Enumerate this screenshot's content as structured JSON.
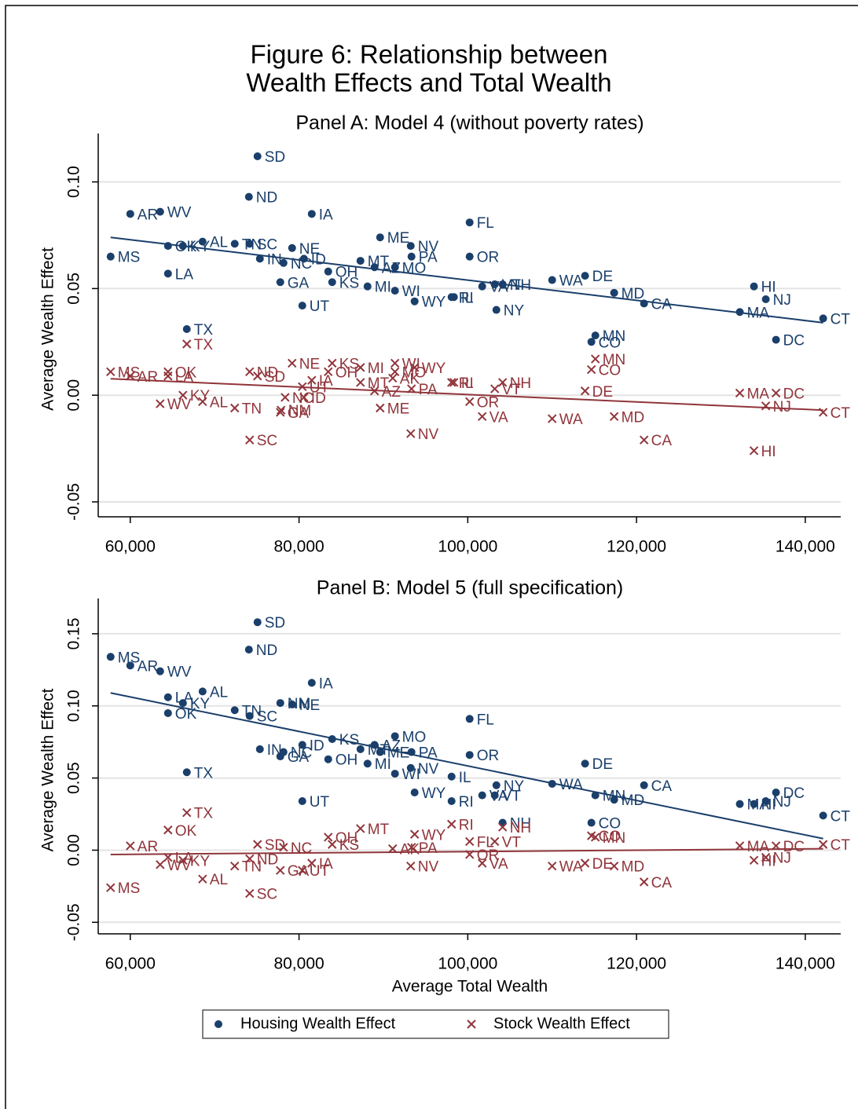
{
  "title": [
    "Figure 6: Relationship between",
    "Wealth Effects and Total Wealth"
  ],
  "chart_data": [
    {
      "type": "scatter",
      "title": "Panel A: Model 4 (without poverty rates)",
      "ylabel": "Average Wealth Effect",
      "xlim": [
        56200,
        144200
      ],
      "ylim": [
        -0.057,
        0.119
      ],
      "xticks": [
        {
          "value": 60000,
          "label": "60,000"
        },
        {
          "value": 80000,
          "label": "80,000"
        },
        {
          "value": 100000,
          "label": "100,000"
        },
        {
          "value": 120000,
          "label": "120,000"
        },
        {
          "value": 140000,
          "label": "140,000"
        }
      ],
      "yticks": [
        -0.05,
        {
          "value": 0,
          "label": "0.00"
        },
        0.05,
        {
          "value": 0.1,
          "label": "0.10"
        }
      ],
      "grid": true,
      "series": [
        {
          "name": "Housing Wealth Effect",
          "color": "#1a3f6b",
          "marker": "dot",
          "labels": [
            "SD",
            "ND",
            "IA",
            "MS",
            "AR",
            "WV",
            "LA",
            "OK",
            "KY",
            "AL",
            "TN",
            "SC",
            "IN",
            "NE",
            "NC",
            "ID",
            "GA",
            "OH",
            "KS",
            "MT",
            "AZ",
            "MO",
            "WI",
            "MI",
            "PA",
            "ME",
            "NV",
            "UT",
            "WY",
            "RI",
            "IL",
            "FL",
            "OR",
            "NY",
            "VA",
            "VT",
            "NH",
            "WA",
            "DE",
            "MD",
            "CA",
            "MN",
            "CO",
            "TX",
            "HI",
            "NJ",
            "MA",
            "DC",
            "CT"
          ],
          "x": [
            75080,
            74060,
            81510,
            57670,
            60000,
            63540,
            64470,
            64470,
            66240,
            68570,
            72380,
            74150,
            75360,
            79180,
            78160,
            80580,
            77780,
            83460,
            83930,
            87280,
            88950,
            91370,
            91370,
            88120,
            93330,
            89610,
            93240,
            80390,
            93700,
            98080,
            98360,
            100220,
            100220,
            103390,
            101710,
            103200,
            104130,
            110000,
            113900,
            117350,
            120890,
            115120,
            114650,
            66700,
            133920,
            135320,
            132240,
            136530,
            142120
          ],
          "values": [
            0.112,
            0.093,
            0.085,
            0.065,
            0.085,
            0.086,
            0.057,
            0.07,
            0.07,
            0.072,
            0.071,
            0.071,
            0.064,
            0.069,
            0.062,
            0.064,
            0.053,
            0.058,
            0.053,
            0.063,
            0.06,
            0.06,
            0.049,
            0.051,
            0.065,
            0.074,
            0.07,
            0.042,
            0.044,
            0.046,
            0.046,
            0.081,
            0.065,
            0.04,
            0.051,
            0.052,
            0.052,
            0.054,
            0.056,
            0.048,
            0.043,
            0.028,
            0.025,
            0.031,
            0.051,
            0.045,
            0.039,
            0.026,
            0.036
          ],
          "fit": {
            "x": [
              57670,
              142120
            ],
            "values": [
              0.074,
              0.034
            ]
          }
        },
        {
          "name": "Stock Wealth Effect",
          "color": "#90353b",
          "marker": "cross",
          "labels": [
            "MS",
            "AR",
            "LA",
            "OK",
            "WV",
            "KY",
            "AL",
            "TX",
            "TN",
            "SC",
            "ND",
            "SD",
            "NE",
            "IA",
            "UT",
            "NC",
            "ID",
            "GA",
            "NM",
            "KS",
            "OH",
            "MI",
            "MT",
            "AK",
            "AZ",
            "ME",
            "WI",
            "MO",
            "WY",
            "PA",
            "NV",
            "RI",
            "IL",
            "OR",
            "VA",
            "NH",
            "VT",
            "WA",
            "DE",
            "MN",
            "CO",
            "MD",
            "CA",
            "MA",
            "HI",
            "DC",
            "NJ",
            "CT"
          ],
          "x": [
            57670,
            60000,
            64470,
            64470,
            63540,
            66240,
            68570,
            66700,
            72380,
            74150,
            74150,
            75080,
            79180,
            81510,
            80390,
            78350,
            80580,
            77780,
            77870,
            83930,
            83460,
            87280,
            87280,
            91100,
            88950,
            89610,
            91370,
            91370,
            93700,
            93330,
            93240,
            98080,
            98360,
            100220,
            101710,
            104130,
            103200,
            110000,
            113900,
            115120,
            114650,
            117350,
            120890,
            132240,
            133920,
            136530,
            135320,
            142120
          ],
          "values": [
            0.011,
            0.009,
            0.009,
            0.011,
            -0.004,
            0,
            -0.003,
            0.024,
            -0.006,
            -0.021,
            0.011,
            0.009,
            0.015,
            0.007,
            0.004,
            -0.001,
            -0.001,
            -0.008,
            -0.007,
            0.015,
            0.011,
            0.013,
            0.006,
            0.008,
            0.002,
            -0.006,
            0.015,
            0.011,
            0.013,
            0.003,
            -0.018,
            0.006,
            0.006,
            -0.003,
            -0.01,
            0.006,
            0.003,
            -0.011,
            0.002,
            0.017,
            0.012,
            -0.01,
            -0.021,
            0.001,
            -0.026,
            0.001,
            -0.005,
            -0.008
          ],
          "fit": {
            "x": [
              57670,
              142120
            ],
            "values": [
              0.0077,
              -0.007
            ]
          }
        }
      ]
    },
    {
      "type": "scatter",
      "title": "Panel B: Model 5 (full specification)",
      "ylabel": "Average Wealth Effect",
      "xlabel": "Average Total Wealth",
      "xlim": [
        56200,
        144200
      ],
      "ylim": [
        -0.058,
        0.169
      ],
      "xticks": [
        {
          "value": 60000,
          "label": "60,000"
        },
        {
          "value": 80000,
          "label": "80,000"
        },
        {
          "value": 100000,
          "label": "100,000"
        },
        {
          "value": 120000,
          "label": "120,000"
        },
        {
          "value": 140000,
          "label": "140,000"
        }
      ],
      "yticks": [
        -0.05,
        {
          "value": 0,
          "label": "0.00"
        },
        0.05,
        {
          "value": 0.1,
          "label": "0.10"
        },
        0.15
      ],
      "grid": true,
      "series": [
        {
          "name": "Housing Wealth Effect",
          "color": "#1a3f6b",
          "marker": "dot",
          "labels": [
            "SD",
            "ND",
            "MS",
            "AR",
            "WV",
            "IA",
            "AL",
            "LA",
            "KY",
            "OK",
            "TN",
            "SC",
            "NM",
            "NE",
            "FL",
            "MO",
            "KS",
            "AZ",
            "ID",
            "MT",
            "ME",
            "PA",
            "IN",
            "NC",
            "GA",
            "OH",
            "MI",
            "NV",
            "OR",
            "WI",
            "IL",
            "DE",
            "WA",
            "CA",
            "NY",
            "VA",
            "VT",
            "WY",
            "RI",
            "MN",
            "MD",
            "UT",
            "TX",
            "NH",
            "CO",
            "MA",
            "HI",
            "NJ",
            "DC",
            "CT"
          ],
          "x": [
            75080,
            74060,
            57670,
            60000,
            63540,
            81510,
            68570,
            64470,
            66240,
            64470,
            72380,
            74150,
            77780,
            79180,
            100220,
            91370,
            83930,
            88950,
            80390,
            87280,
            89610,
            93330,
            75360,
            78160,
            77780,
            83460,
            88120,
            93240,
            100220,
            91370,
            98080,
            113900,
            110000,
            120890,
            103390,
            101710,
            103200,
            93700,
            98080,
            115120,
            117350,
            80390,
            66700,
            104130,
            114650,
            132240,
            133920,
            135320,
            136530,
            142120
          ],
          "values": [
            0.158,
            0.139,
            0.134,
            0.128,
            0.124,
            0.116,
            0.11,
            0.106,
            0.102,
            0.095,
            0.097,
            0.093,
            0.102,
            0.101,
            0.091,
            0.079,
            0.077,
            0.073,
            0.073,
            0.07,
            0.068,
            0.068,
            0.07,
            0.068,
            0.065,
            0.063,
            0.06,
            0.057,
            0.066,
            0.053,
            0.051,
            0.06,
            0.046,
            0.045,
            0.045,
            0.038,
            0.038,
            0.04,
            0.034,
            0.038,
            0.035,
            0.034,
            0.054,
            0.019,
            0.019,
            0.032,
            0.032,
            0.034,
            0.04,
            0.024
          ],
          "fit": {
            "x": [
              57670,
              142120
            ],
            "values": [
              0.109,
              0.008
            ]
          }
        },
        {
          "name": "Stock Wealth Effect",
          "color": "#90353b",
          "marker": "cross",
          "labels": [
            "MS",
            "AR",
            "OK",
            "TX",
            "LA",
            "KY",
            "WV",
            "AL",
            "TN",
            "SC",
            "ND",
            "SD",
            "NC",
            "GA",
            "UT",
            "IA",
            "KS",
            "OH",
            "MT",
            "WY",
            "PA",
            "AK",
            "NV",
            "RI",
            "FL",
            "OR",
            "VA",
            "VT",
            "NH",
            "WA",
            "DE",
            "MN",
            "CO",
            "MD",
            "CA",
            "MA",
            "DC",
            "HI",
            "NJ",
            "CT"
          ],
          "x": [
            57670,
            60000,
            64470,
            66700,
            64470,
            66240,
            63540,
            68570,
            72380,
            74150,
            74150,
            75080,
            78160,
            77780,
            80390,
            81510,
            83930,
            83460,
            87280,
            93700,
            93330,
            91100,
            93240,
            98080,
            100220,
            100220,
            101710,
            103200,
            104130,
            110000,
            113900,
            115120,
            114650,
            117350,
            120890,
            132240,
            136530,
            133920,
            135320,
            142120
          ],
          "values": [
            -0.026,
            0.003,
            0.014,
            0.026,
            -0.005,
            -0.007,
            -0.01,
            -0.02,
            -0.011,
            -0.03,
            -0.006,
            0.004,
            0.002,
            -0.014,
            -0.014,
            -0.009,
            0.004,
            0.009,
            0.015,
            0.011,
            0.002,
            0.001,
            -0.011,
            0.018,
            0.006,
            -0.003,
            -0.009,
            0.006,
            0.016,
            -0.011,
            -0.009,
            0.009,
            0.01,
            -0.011,
            -0.022,
            0.003,
            0.003,
            -0.007,
            -0.005,
            0.004
          ],
          "fit": {
            "x": [
              57670,
              142120
            ],
            "values": [
              -0.003,
              0.001
            ]
          }
        }
      ]
    }
  ]
}
